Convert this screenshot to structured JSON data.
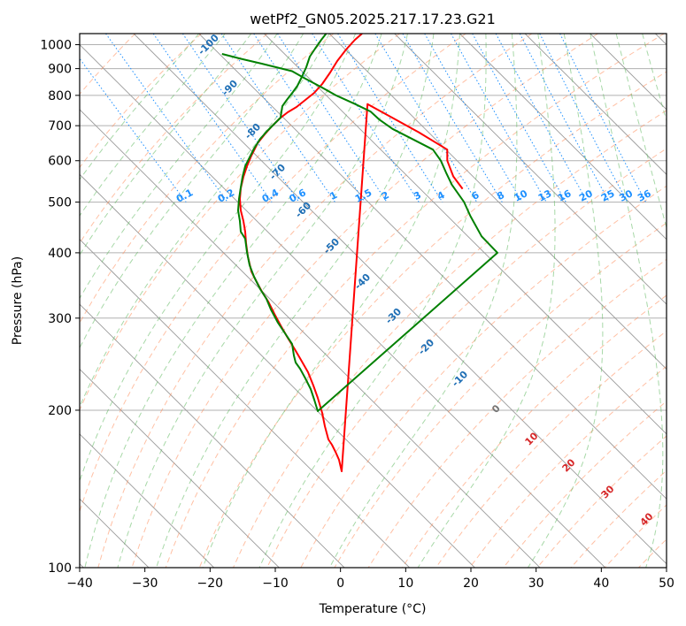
{
  "chart_data": {
    "type": "line",
    "title": "wetPf2_GN05.2025.217.17.23.G21",
    "xlabel": "Temperature (°C)",
    "ylabel": "Pressure (hPa)",
    "xlim": [
      -40,
      50
    ],
    "ylim": [
      1050,
      100
    ],
    "y_scale": "log",
    "x_ticks": [
      -40,
      -30,
      -20,
      -10,
      0,
      10,
      20,
      30,
      40,
      50
    ],
    "x_tick_labels": [
      "−40",
      "−30",
      "−20",
      "−10",
      "0",
      "10",
      "20",
      "30",
      "40",
      "50"
    ],
    "y_ticks": [
      100,
      200,
      300,
      400,
      500,
      600,
      700,
      800,
      900,
      1000
    ],
    "y_tick_labels": [
      "100",
      "200",
      "300",
      "400",
      "500",
      "600",
      "700",
      "800",
      "900",
      "1000"
    ],
    "grid": true,
    "skew": 35,
    "series": [
      {
        "name": "",
        "color": "#ff0000",
        "p": [
          530,
          560,
          600,
          630,
          680,
          730,
          770
        ],
        "t": [
          -3.5,
          -3.0,
          -1.5,
          0.2,
          -1.5,
          -3.5,
          -5.0
        ]
      },
      {
        "name": "",
        "color": "#008000",
        "p": [
          960,
          940,
          920,
          890,
          860,
          830,
          800,
          770,
          745,
          720,
          690,
          660,
          630,
          600,
          570,
          540,
          500,
          470,
          430,
          400
        ],
        "t": [
          -19.6,
          -17.5,
          -15.0,
          -11.5,
          -10.6,
          -9.5,
          -8.5,
          -6.9,
          -5.7,
          -5.6,
          -5.0,
          -3.5,
          -2.0,
          -2.5,
          -3.5,
          -4.5,
          -5.3,
          -6.5,
          -7.9,
          -8.0
        ]
      }
    ],
    "upper_segments": [
      {
        "color": "#ff0000",
        "points": [
          [
            386,
            533
          ],
          [
            383,
            520
          ],
          [
            379,
            511
          ],
          [
            375,
            503
          ],
          [
            371,
            497
          ],
          [
            367,
            482
          ],
          [
            364,
            467
          ],
          [
            359,
            450
          ],
          [
            354,
            436
          ],
          [
            348,
            421
          ],
          [
            340,
            407
          ],
          [
            333,
            395
          ],
          [
            325,
            382
          ],
          [
            317,
            368
          ],
          [
            310,
            355
          ],
          [
            303,
            341
          ],
          [
            296,
            330
          ],
          [
            289,
            317
          ],
          [
            284,
            307
          ],
          [
            280,
            290
          ],
          [
            278,
            275
          ],
          [
            277,
            262
          ],
          [
            275,
            250
          ],
          [
            272,
            238
          ],
          [
            271,
            225
          ],
          [
            272,
            213
          ],
          [
            275,
            200
          ],
          [
            279,
            188
          ],
          [
            284,
            176
          ],
          [
            291,
            162
          ],
          [
            299,
            152
          ],
          [
            307,
            143
          ],
          [
            316,
            134
          ],
          [
            325,
            127
          ],
          [
            335,
            121
          ],
          [
            345,
            113
          ],
          [
            355,
            105
          ],
          [
            364,
            95
          ],
          [
            373,
            82
          ],
          [
            381,
            69
          ],
          [
            391,
            56
          ],
          [
            401,
            45
          ],
          [
            409,
            38
          ]
        ]
      },
      {
        "color": "#008000",
        "points": [
          [
            359,
            465
          ],
          [
            355,
            452
          ],
          [
            351,
            440
          ],
          [
            345,
            428
          ],
          [
            339,
            417
          ],
          [
            334,
            410
          ],
          [
            332,
            402
          ],
          [
            330,
            389
          ],
          [
            322,
            377
          ],
          [
            314,
            365
          ],
          [
            306,
            350
          ],
          [
            301,
            338
          ],
          [
            294,
            327
          ],
          [
            287,
            313
          ],
          [
            282,
            300
          ],
          [
            279,
            285
          ],
          [
            277,
            270
          ],
          [
            272,
            262
          ],
          [
            271,
            250
          ],
          [
            269,
            238
          ],
          [
            270,
            225
          ],
          [
            272,
            212
          ],
          [
            274,
            200
          ],
          [
            277,
            188
          ],
          [
            282,
            178
          ],
          [
            287,
            168
          ],
          [
            294,
            157
          ],
          [
            302,
            148
          ],
          [
            310,
            140
          ],
          [
            317,
            133
          ],
          [
            318,
            126
          ],
          [
            319,
            120
          ],
          [
            324,
            113
          ],
          [
            331,
            104
          ],
          [
            336,
            97
          ],
          [
            341,
            87
          ],
          [
            346,
            76
          ],
          [
            350,
            64
          ],
          [
            356,
            55
          ],
          [
            363,
            45
          ],
          [
            370,
            36
          ]
        ]
      }
    ],
    "mixing_ratio_labels": [
      "0.1",
      "0.2",
      "0.4",
      "0.6",
      "1",
      "1.5",
      "2",
      "3",
      "4",
      "6",
      "8",
      "10",
      "13",
      "16",
      "20",
      "25",
      "30",
      "36"
    ],
    "dry_adiabat_labels": [
      "-100",
      "-90",
      "-80",
      "-70",
      "-60",
      "-50",
      "-40",
      "-30",
      "-20",
      "-10"
    ],
    "moist_adiabat_labels": [
      "0",
      "10",
      "20",
      "30",
      "40"
    ]
  }
}
